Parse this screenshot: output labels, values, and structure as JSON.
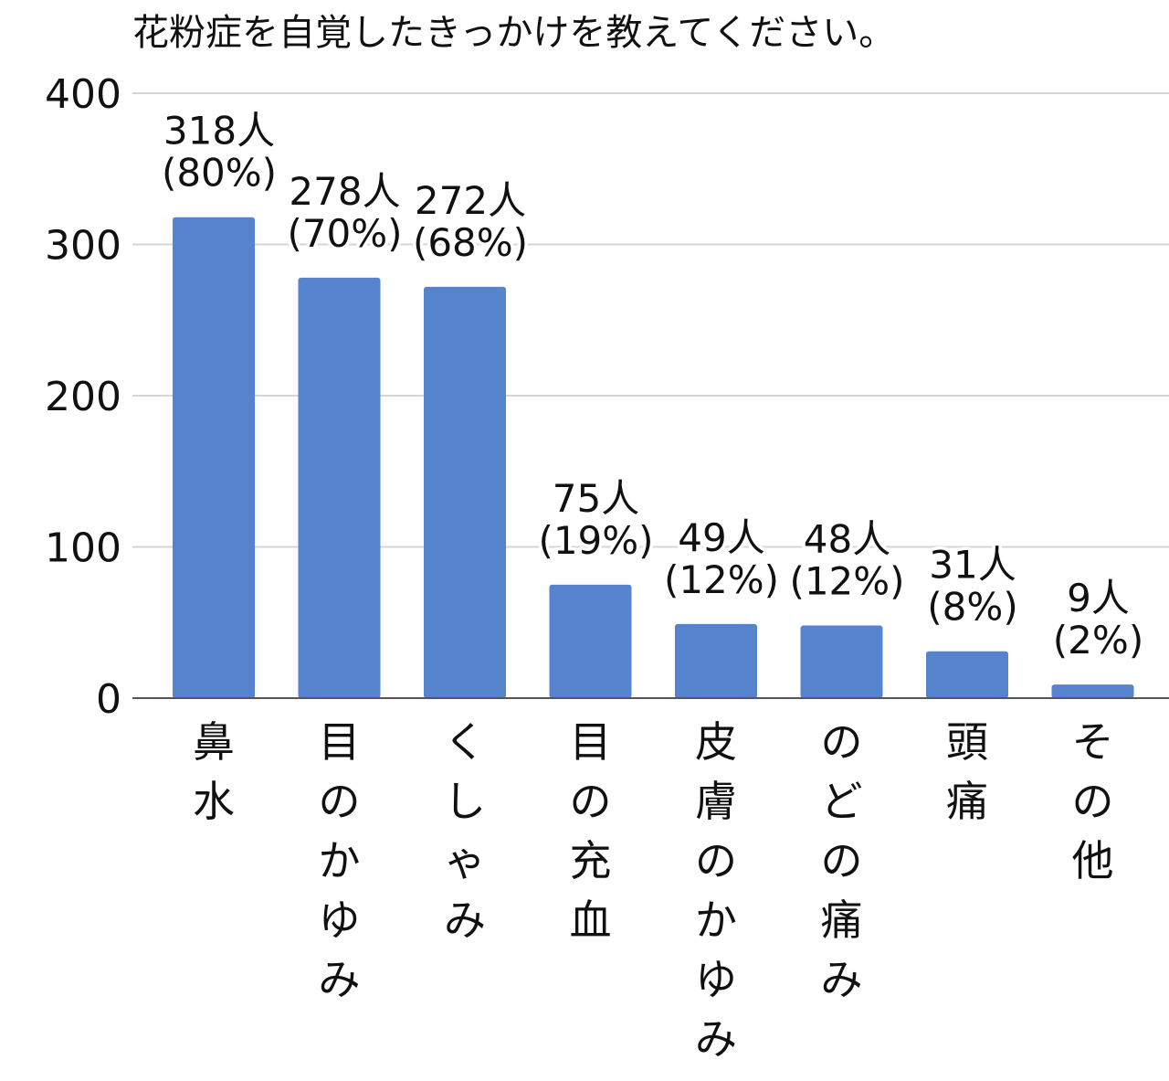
{
  "chart_data": {
    "type": "bar",
    "title": "花粉症を自覚したきっかけを教えてください。",
    "categories": [
      "鼻水",
      "目のかゆみ",
      "くしゃみ",
      "目の充血",
      "皮膚のかゆみ",
      "のどの痛み",
      "頭痛",
      "その他"
    ],
    "series": [
      {
        "values": [
          318,
          278,
          272,
          75,
          49,
          48,
          31,
          9
        ]
      }
    ],
    "data_labels": [
      [
        "318人",
        "(80%)"
      ],
      [
        "278人",
        "(70%)"
      ],
      [
        "272人",
        "(68%)"
      ],
      [
        "75人",
        "(19%)"
      ],
      [
        "49人",
        "(12%)"
      ],
      [
        "48人",
        "(12%)"
      ],
      [
        "31人",
        "(8%)"
      ],
      [
        "9人",
        "(2%)"
      ]
    ],
    "yticks": [
      "0",
      "100",
      "200",
      "300",
      "400"
    ],
    "ylim": [
      0,
      400
    ],
    "xlabel": "",
    "ylabel": "",
    "grid": true,
    "legend": "none",
    "colors": {
      "bar": "#5583cd",
      "grid": "#d6d6d6",
      "axis": "#555555",
      "text": "#111111"
    }
  }
}
